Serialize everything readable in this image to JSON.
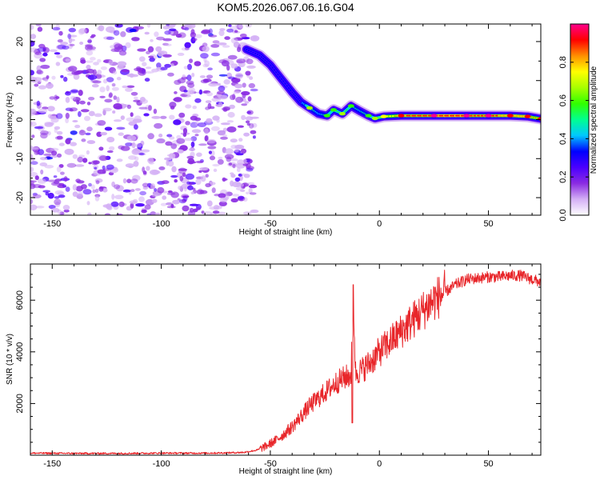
{
  "title": "KOM5.2026.067.06.16.G04",
  "chart_data": [
    {
      "type": "heatmap",
      "name": "spectrogram",
      "xlabel": "Height of straight line (km)",
      "ylabel": "Frequency (Hz)",
      "xlim": [
        -160,
        74
      ],
      "ylim": [
        -24.5,
        24.5
      ],
      "xticks": [
        -150,
        -100,
        -50,
        0,
        50
      ],
      "yticks": [
        -20,
        -10,
        0,
        10,
        20
      ],
      "colorbar": {
        "label": "Normalized spectral amplitude",
        "range": [
          0,
          1
        ],
        "ticks": [
          "0.0",
          "0.2",
          "0.4",
          "0.6",
          "0.8"
        ],
        "tick_values": [
          0,
          0.2,
          0.4,
          0.6,
          0.8
        ],
        "colors": [
          "#ffffff",
          "#d4b0f5",
          "#8a2be2",
          "#4b00ff",
          "#0000ff",
          "#00c8ff",
          "#00ff90",
          "#30ff00",
          "#a8ff00",
          "#ffff00",
          "#ff9000",
          "#ff0000",
          "#ff008c"
        ]
      },
      "noise_region_x": [
        -160,
        -60
      ],
      "noise_level": 0.22,
      "ridge_track": [
        {
          "x": -61,
          "y": 18,
          "a": 0.35
        },
        {
          "x": -55,
          "y": 16.5,
          "a": 0.3
        },
        {
          "x": -50,
          "y": 14,
          "a": 0.3
        },
        {
          "x": -45,
          "y": 10.5,
          "a": 0.3
        },
        {
          "x": -40,
          "y": 7,
          "a": 0.3
        },
        {
          "x": -36,
          "y": 4.5,
          "a": 0.35
        },
        {
          "x": -32,
          "y": 3,
          "a": 0.55
        },
        {
          "x": -28,
          "y": 1.5,
          "a": 0.4
        },
        {
          "x": -24,
          "y": 1,
          "a": 0.5
        },
        {
          "x": -21,
          "y": 2.5,
          "a": 0.5
        },
        {
          "x": -17,
          "y": 1.5,
          "a": 0.6
        },
        {
          "x": -13,
          "y": 3.5,
          "a": 0.5
        },
        {
          "x": -9,
          "y": 2.2,
          "a": 0.45
        },
        {
          "x": -5,
          "y": 1,
          "a": 0.5
        },
        {
          "x": -2,
          "y": 0.3,
          "a": 0.55
        },
        {
          "x": 2,
          "y": 0.8,
          "a": 0.7
        },
        {
          "x": 10,
          "y": 1,
          "a": 0.85
        },
        {
          "x": 25,
          "y": 1,
          "a": 0.95
        },
        {
          "x": 40,
          "y": 1,
          "a": 0.95
        },
        {
          "x": 50,
          "y": 1,
          "a": 0.9
        },
        {
          "x": 60,
          "y": 1,
          "a": 0.85
        },
        {
          "x": 68,
          "y": 0.8,
          "a": 0.85
        },
        {
          "x": 74,
          "y": 0.2,
          "a": 0.8
        }
      ]
    },
    {
      "type": "line",
      "name": "snr",
      "xlabel": "Height of straight line (km)",
      "ylabel": "SNR (10 * v/v)",
      "xlim": [
        -160,
        74
      ],
      "ylim": [
        0,
        7400
      ],
      "xticks": [
        -150,
        -100,
        -50,
        0,
        50
      ],
      "yticks": [
        2000,
        4000,
        6000
      ],
      "color": "#e8262a",
      "series": [
        {
          "name": "SNR",
          "x": [
            -160,
            -140,
            -120,
            -100,
            -80,
            -70,
            -62,
            -56,
            -52,
            -48,
            -44,
            -40,
            -36,
            -32,
            -28,
            -24,
            -20,
            -16,
            -13,
            -12,
            -11,
            -8,
            -4,
            0,
            5,
            10,
            15,
            20,
            25,
            30,
            35,
            40,
            45,
            50,
            55,
            60,
            65,
            70,
            74
          ],
          "values": [
            80,
            70,
            70,
            80,
            80,
            90,
            110,
            200,
            350,
            550,
            800,
            1100,
            1500,
            1900,
            2200,
            2500,
            2800,
            3000,
            3100,
            6600,
            3200,
            3300,
            3600,
            4000,
            4400,
            4800,
            5200,
            5600,
            6000,
            6300,
            6600,
            6800,
            6850,
            6900,
            6900,
            6950,
            6950,
            6800,
            6700
          ]
        }
      ]
    }
  ]
}
